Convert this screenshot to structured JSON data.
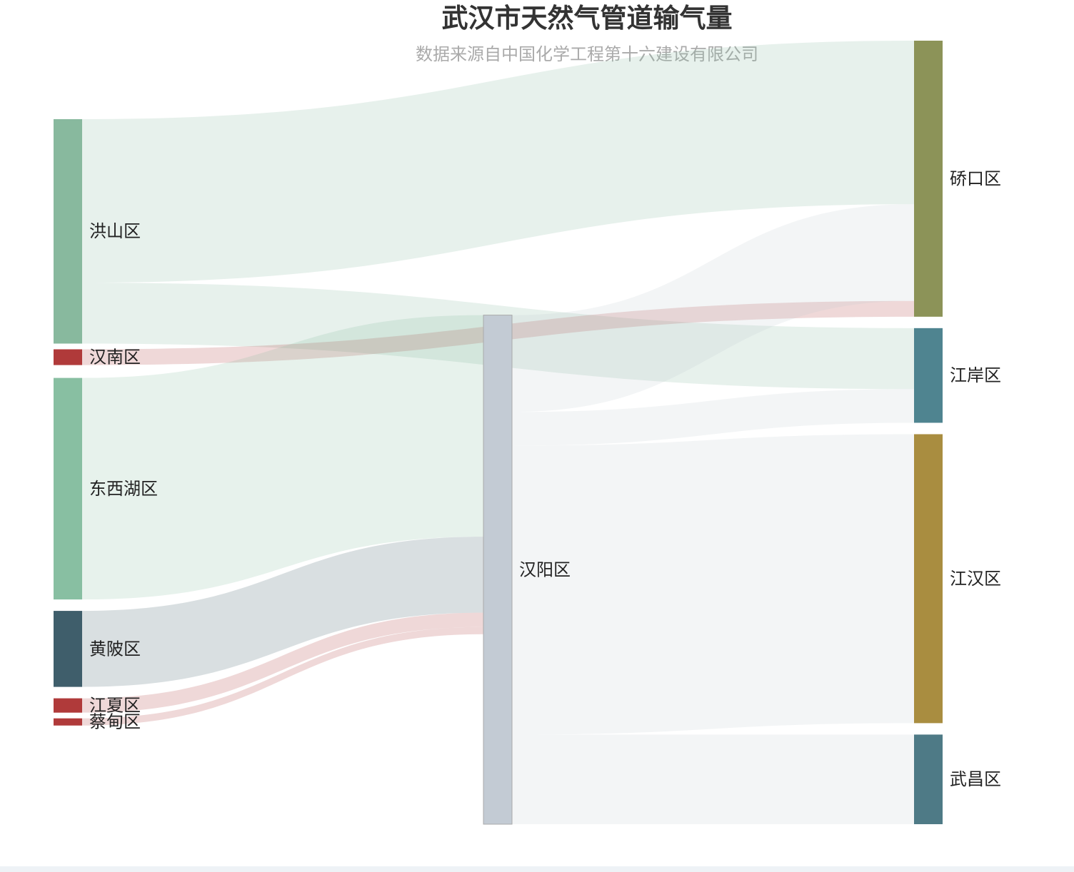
{
  "title": "武汉市天然气管道输气量",
  "subtitle": "数据来源自中国化学工程第十六建设有限公司",
  "chart_data": {
    "type": "sankey",
    "title": "武汉市天然气管道输气量",
    "subtitle": "数据来源自中国化学工程第十六建设有限公司",
    "nodes": [
      {
        "name": "洪山区",
        "column": 0,
        "color": "#88b99e"
      },
      {
        "name": "汉南区",
        "column": 0,
        "color": "#b03a3a"
      },
      {
        "name": "东西湖区",
        "column": 0,
        "color": "#88bfa2"
      },
      {
        "name": "黄陂区",
        "column": 0,
        "color": "#3f5e6b"
      },
      {
        "name": "江夏区",
        "column": 0,
        "color": "#b03a3a"
      },
      {
        "name": "蔡甸区",
        "column": 0,
        "color": "#b03a3a"
      },
      {
        "name": "汉阳区",
        "column": 1,
        "color": "#c3cbd4"
      },
      {
        "name": "硚口区",
        "column": 2,
        "color": "#8c9358"
      },
      {
        "name": "江岸区",
        "column": 2,
        "color": "#4f8490"
      },
      {
        "name": "江汉区",
        "column": 2,
        "color": "#a98d40"
      },
      {
        "name": "武昌区",
        "column": 2,
        "color": "#4e7a86"
      }
    ],
    "links": [
      {
        "source": "洪山区",
        "target": "硚口区",
        "value": 228
      },
      {
        "source": "洪山区",
        "target": "江岸区",
        "value": 85
      },
      {
        "source": "汉南区",
        "target": "硚口区",
        "value": 22
      },
      {
        "source": "东西湖区",
        "target": "汉阳区",
        "value": 309
      },
      {
        "source": "黄陂区",
        "target": "汉阳区",
        "value": 106
      },
      {
        "source": "江夏区",
        "target": "汉阳区",
        "value": 20
      },
      {
        "source": "蔡甸区",
        "target": "汉阳区",
        "value": 10
      },
      {
        "source": "汉阳区",
        "target": "硚口区",
        "value": 135
      },
      {
        "source": "汉阳区",
        "target": "江岸区",
        "value": 47
      },
      {
        "source": "汉阳区",
        "target": "江汉区",
        "value": 403
      },
      {
        "source": "汉阳区",
        "target": "武昌区",
        "value": 125
      }
    ]
  }
}
